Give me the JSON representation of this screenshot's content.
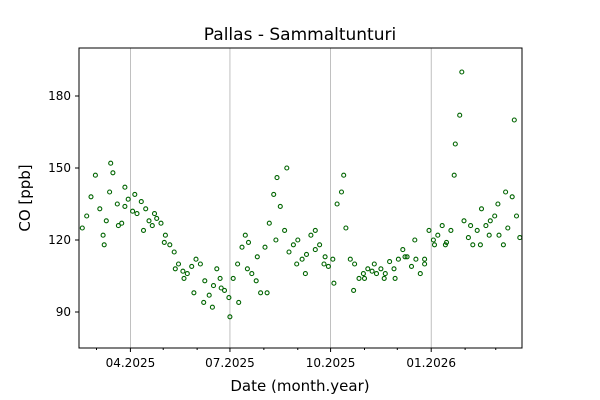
{
  "chart_data": {
    "type": "scatter",
    "title": "Pallas - Sammaltunturi",
    "xlabel": "Date (month.year)",
    "ylabel": "CO [ppb]",
    "xlim": [
      "2025-02-13",
      "2026-03-25"
    ],
    "ylim": [
      75,
      200
    ],
    "yticks": [
      90,
      120,
      150,
      180
    ],
    "xticks": [
      {
        "date": "2025-04-01",
        "label": "04.2025"
      },
      {
        "date": "2025-07-01",
        "label": "07.2025"
      },
      {
        "date": "2025-10-01",
        "label": "10.2025"
      },
      {
        "date": "2026-01-01",
        "label": "01.2026"
      }
    ],
    "minor_xticks": [
      "2025-03-01",
      "2025-05-01",
      "2025-06-01",
      "2025-08-01",
      "2025-09-01",
      "2025-11-01",
      "2025-12-01",
      "2026-02-01",
      "2026-03-01"
    ],
    "grid": "vertical",
    "marker": "open-circle",
    "color": "#006400",
    "series": [
      {
        "x": [
          "2025-02-16",
          "2025-02-20",
          "2025-02-24",
          "2025-02-28",
          "2025-03-04",
          "2025-03-07",
          "2025-03-10",
          "2025-03-13",
          "2025-03-16",
          "2025-03-20",
          "2025-03-24",
          "2025-03-27",
          "2025-03-30",
          "2025-04-03",
          "2025-04-07",
          "2025-04-11",
          "2025-04-15",
          "2025-04-18",
          "2025-04-21",
          "2025-04-25",
          "2025-04-29",
          "2025-05-03",
          "2025-05-07",
          "2025-05-11",
          "2025-05-15",
          "2025-05-19",
          "2025-05-23",
          "2025-05-27",
          "2025-05-31",
          "2025-06-04",
          "2025-06-08",
          "2025-06-12",
          "2025-06-16",
          "2025-06-19",
          "2025-06-22",
          "2025-06-26",
          "2025-06-30",
          "2025-07-04",
          "2025-07-08",
          "2025-07-12",
          "2025-07-15",
          "2025-07-18",
          "2025-07-21",
          "2025-07-25",
          "2025-07-29",
          "2025-08-02",
          "2025-08-06",
          "2025-08-10",
          "2025-08-13",
          "2025-08-16",
          "2025-08-20",
          "2025-08-24",
          "2025-08-28",
          "2025-09-01",
          "2025-09-05",
          "2025-09-09",
          "2025-09-13",
          "2025-09-17",
          "2025-09-21",
          "2025-09-25",
          "2025-09-29",
          "2025-10-03",
          "2025-10-07",
          "2025-10-11",
          "2025-10-15",
          "2025-10-19",
          "2025-10-23",
          "2025-10-27",
          "2025-10-31",
          "2025-11-04",
          "2025-11-08",
          "2025-11-12",
          "2025-11-16",
          "2025-11-20",
          "2025-11-24",
          "2025-11-28",
          "2025-12-02",
          "2025-12-06",
          "2025-12-10",
          "2025-12-14",
          "2025-12-18",
          "2025-12-22",
          "2025-12-26",
          "2025-12-30",
          "2026-01-03",
          "2026-01-07",
          "2026-01-11",
          "2026-01-15",
          "2026-01-19",
          "2026-01-23",
          "2026-01-27",
          "2026-01-31",
          "2026-02-04",
          "2026-02-08",
          "2026-02-12",
          "2026-02-16",
          "2026-02-20",
          "2026-02-24",
          "2026-02-28",
          "2026-03-04",
          "2026-03-08",
          "2026-03-12",
          "2026-03-16",
          "2026-03-20",
          "2026-03-23"
        ],
        "y": [
          125,
          130,
          138,
          147,
          133,
          122,
          128,
          140,
          148,
          135,
          127,
          134,
          137,
          132,
          131,
          136,
          133,
          128,
          126,
          129,
          127,
          122,
          118,
          115,
          110,
          107,
          106,
          109,
          112,
          110,
          103,
          97,
          101,
          108,
          104,
          99,
          96,
          104,
          110,
          117,
          122,
          119,
          106,
          103,
          98,
          117,
          127,
          139,
          146,
          134,
          124,
          115,
          118,
          120,
          112,
          114,
          122,
          116,
          118,
          110,
          109,
          112,
          135,
          140,
          125,
          112,
          110,
          104,
          106,
          108,
          107,
          106,
          108,
          106,
          111,
          108,
          112,
          116,
          113,
          109,
          112,
          106,
          112,
          124,
          120,
          122,
          126,
          119,
          124,
          160,
          172,
          128,
          121,
          118,
          124,
          133,
          126,
          128,
          130,
          122,
          118,
          125,
          138,
          130,
          121
        ]
      },
      {
        "x": [
          "2025-03-08",
          "2025-03-14",
          "2025-03-21",
          "2025-03-27",
          "2025-04-05",
          "2025-04-13",
          "2025-04-23",
          "2025-05-02",
          "2025-05-12",
          "2025-05-20",
          "2025-05-29",
          "2025-06-07",
          "2025-06-15",
          "2025-06-23",
          "2025-07-01",
          "2025-07-09",
          "2025-07-17",
          "2025-07-26",
          "2025-08-04",
          "2025-08-12",
          "2025-08-22",
          "2025-08-31",
          "2025-09-08",
          "2025-09-17",
          "2025-09-26",
          "2025-10-04",
          "2025-10-13",
          "2025-10-22",
          "2025-11-01",
          "2025-11-10",
          "2025-11-19",
          "2025-11-29",
          "2025-12-08",
          "2025-12-17",
          "2025-12-26",
          "2026-01-04",
          "2026-01-14",
          "2026-01-22",
          "2026-01-29",
          "2026-02-06",
          "2026-02-15",
          "2026-02-23",
          "2026-03-03",
          "2026-03-10",
          "2026-03-18"
        ],
        "y": [
          118,
          152,
          126,
          142,
          139,
          124,
          131,
          119,
          108,
          104,
          98,
          94,
          92,
          100,
          88,
          94,
          108,
          113,
          98,
          120,
          150,
          110,
          106,
          124,
          113,
          102,
          147,
          99,
          104,
          110,
          104,
          104,
          113,
          120,
          110,
          118,
          118,
          147,
          190,
          126,
          118,
          122,
          135,
          140,
          170
        ]
      }
    ]
  }
}
